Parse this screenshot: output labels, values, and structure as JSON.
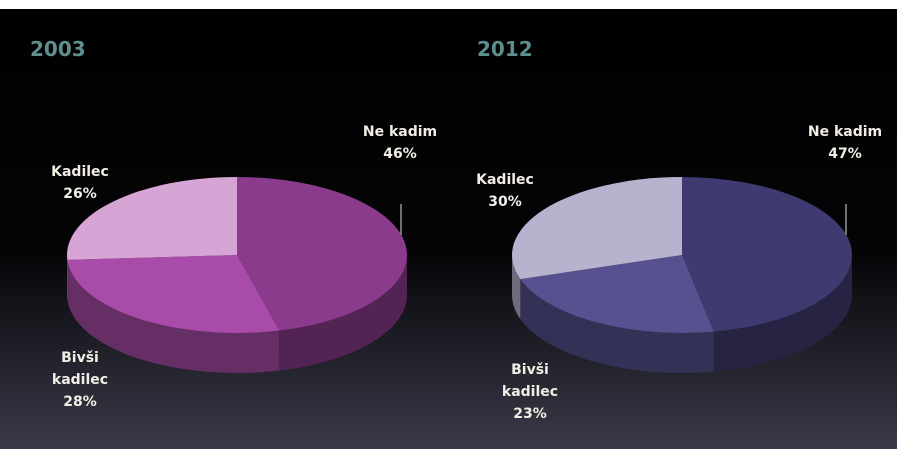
{
  "chart_data": [
    {
      "type": "pie",
      "title": "2003",
      "categories": [
        "Ne kadim",
        "Bivši kadilec",
        "Kadilec"
      ],
      "values": [
        46,
        28,
        26
      ],
      "value_labels": [
        "46%",
        "28%",
        "26%"
      ],
      "colors": [
        "#8b3b8c",
        "#a94ca9",
        "#d7a5d5"
      ]
    },
    {
      "type": "pie",
      "title": "2012",
      "categories": [
        "Ne kadim",
        "Bivši kadilec",
        "Kadilec"
      ],
      "values": [
        47,
        23,
        30
      ],
      "value_labels": [
        "47%",
        "23%",
        "30%"
      ],
      "colors": [
        "#3f3b70",
        "#57518f",
        "#b7b3cf"
      ]
    }
  ]
}
